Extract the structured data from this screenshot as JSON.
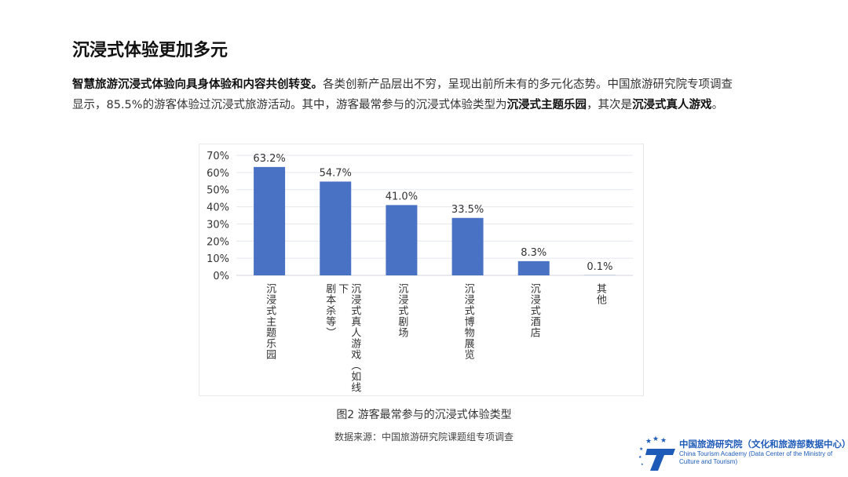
{
  "title": "沉浸式体验更加多元",
  "paragraph": {
    "bold1": "智慧旅游沉浸式体验向具身体验和内容共创转变。",
    "text1": "各类创新产品层出不穷，呈现出前所未有的多元化态势。中国旅游研究院专项调查显示，85.5%的游客体验过沉浸式旅游活动。其中，游客最常参与的沉浸式体验类型为",
    "bold2": "沉浸式主题乐园",
    "text2": "，其次是",
    "bold3": "沉浸式真人游戏",
    "text3": "。"
  },
  "chart_data": {
    "type": "bar",
    "categories": [
      "沉浸式主题乐园",
      "沉浸式真人游戏（如线下剧本杀等）",
      "沉浸式剧场",
      "沉浸式博物展览",
      "沉浸式酒店",
      "其他"
    ],
    "category_lines": [
      [
        "沉浸式主题乐园"
      ],
      [
        "沉浸式真人游戏（如线下",
        "剧本杀等）"
      ],
      [
        "沉浸式剧场"
      ],
      [
        "沉浸式博物展览"
      ],
      [
        "沉浸式酒店"
      ],
      [
        "其他"
      ]
    ],
    "values": [
      63.2,
      54.7,
      41.0,
      33.5,
      8.3,
      0.1
    ],
    "data_labels": [
      "63.2%",
      "54.7%",
      "41.0%",
      "33.5%",
      "8.3%",
      "0.1%"
    ],
    "yticks": [
      "0%",
      "10%",
      "20%",
      "30%",
      "40%",
      "50%",
      "60%",
      "70%"
    ],
    "ylim": [
      0,
      70
    ],
    "grid": true,
    "bar_color": "#4a72c4"
  },
  "caption": "图2  游客最常参与的沉浸式体验类型",
  "source": "数据来源：中国旅游研究院课题组专项调查",
  "logo": {
    "cn": "中国旅游研究院（文化和旅游部数据中心）",
    "en": "China Tourism Academy (Data Center of the Ministry of Culture and Tourism)",
    "color": "#1e5bb8"
  }
}
